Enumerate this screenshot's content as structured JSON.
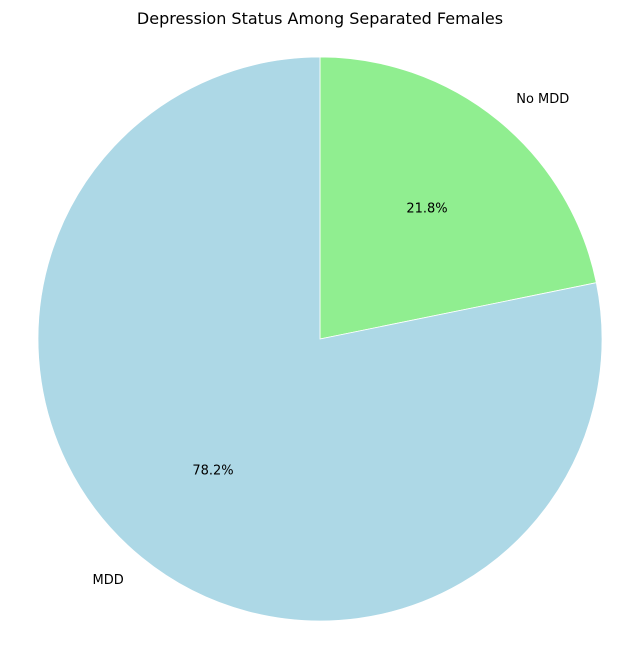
{
  "chart_data": {
    "type": "pie",
    "title": "Depression Status Among Separated Females",
    "start_angle_deg": 90,
    "direction": "clockwise",
    "slices": [
      {
        "label": "No MDD",
        "value": 21.8,
        "pct_text": "21.8%",
        "color": "#90ee90"
      },
      {
        "label": "MDD",
        "value": 78.2,
        "pct_text": "78.2%",
        "color": "#add8e6"
      }
    ],
    "legend": "none"
  }
}
